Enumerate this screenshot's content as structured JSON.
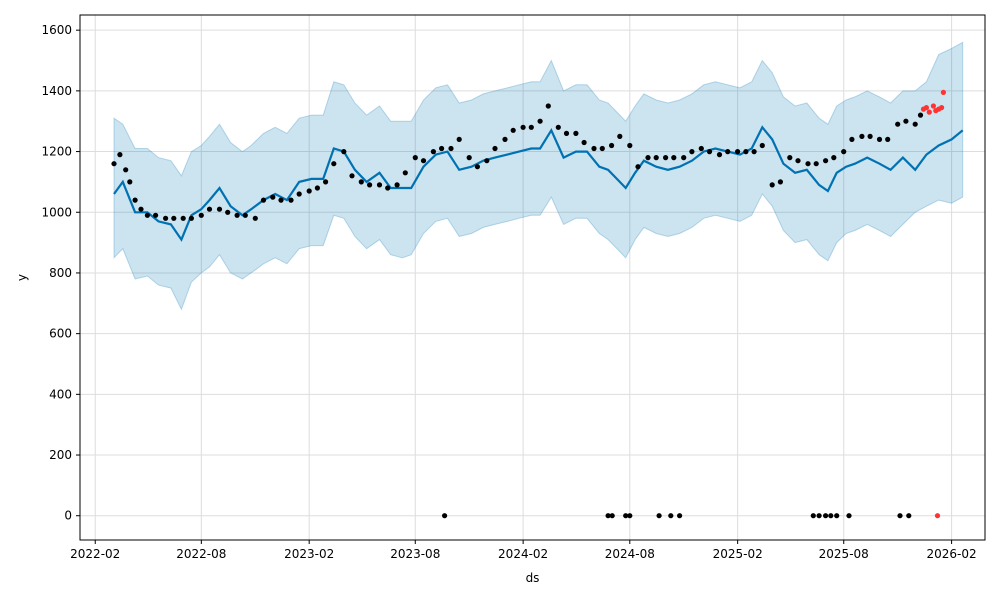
{
  "chart_data": {
    "type": "line",
    "title": "",
    "xlabel": "ds",
    "ylabel": "y",
    "x_range": [
      "2022-01-06",
      "2026-03-30"
    ],
    "ylim": [
      -80,
      1650
    ],
    "grid": true,
    "x_ticks": [
      "2022-02",
      "2022-08",
      "2023-02",
      "2023-08",
      "2024-02",
      "2024-08",
      "2025-02",
      "2025-08",
      "2026-02"
    ],
    "y_ticks": [
      0,
      200,
      400,
      600,
      800,
      1000,
      1200,
      1400,
      1600
    ],
    "colors": {
      "forecast": "#0072B2",
      "uncertainty": "#0072B2",
      "observed": "#000000",
      "outlier": "#FF3333",
      "grid": "#dddddd"
    },
    "series": [
      {
        "kind": "forecast",
        "x": [
          "2022-03-05",
          "2022-03-20",
          "2022-04-10",
          "2022-05-01",
          "2022-05-20",
          "2022-06-10",
          "2022-06-28",
          "2022-07-15",
          "2022-08-01",
          "2022-08-15",
          "2022-09-01",
          "2022-09-20",
          "2022-10-10",
          "2022-10-25",
          "2022-11-15",
          "2022-12-05",
          "2022-12-25",
          "2023-01-15",
          "2023-02-05",
          "2023-02-25",
          "2023-03-15",
          "2023-04-01",
          "2023-04-20",
          "2023-05-10",
          "2023-06-01",
          "2023-06-20",
          "2023-07-10",
          "2023-07-25",
          "2023-08-15",
          "2023-09-05",
          "2023-09-25",
          "2023-10-15",
          "2023-11-05",
          "2023-11-25",
          "2023-12-15",
          "2024-01-05",
          "2024-01-25",
          "2024-02-15",
          "2024-03-01",
          "2024-03-20",
          "2024-04-10",
          "2024-05-01",
          "2024-05-20",
          "2024-06-10",
          "2024-06-25",
          "2024-07-10",
          "2024-07-25",
          "2024-08-10",
          "2024-08-25",
          "2024-09-15",
          "2024-10-05",
          "2024-10-25",
          "2024-11-15",
          "2024-12-05",
          "2024-12-25",
          "2025-01-15",
          "2025-02-05",
          "2025-02-25",
          "2025-03-15",
          "2025-04-01",
          "2025-04-20",
          "2025-05-10",
          "2025-05-30",
          "2025-06-20",
          "2025-07-05",
          "2025-07-20",
          "2025-08-05",
          "2025-08-20",
          "2025-09-10",
          "2025-10-01",
          "2025-10-20",
          "2025-11-10",
          "2025-12-01",
          "2025-12-20",
          "2026-01-10",
          "2026-02-01",
          "2026-02-20"
        ],
        "y": [
          1060,
          1100,
          1000,
          1000,
          970,
          960,
          910,
          990,
          1010,
          1040,
          1080,
          1020,
          990,
          1010,
          1040,
          1060,
          1040,
          1100,
          1110,
          1110,
          1210,
          1200,
          1140,
          1100,
          1130,
          1080,
          1080,
          1080,
          1150,
          1190,
          1200,
          1140,
          1150,
          1170,
          1180,
          1190,
          1200,
          1210,
          1210,
          1270,
          1180,
          1200,
          1200,
          1150,
          1140,
          1110,
          1080,
          1130,
          1170,
          1150,
          1140,
          1150,
          1170,
          1200,
          1210,
          1200,
          1190,
          1210,
          1280,
          1240,
          1160,
          1130,
          1140,
          1090,
          1070,
          1130,
          1150,
          1160,
          1180,
          1160,
          1140,
          1180,
          1140,
          1190,
          1220,
          1240,
          1270
        ]
      },
      {
        "kind": "uncertainty",
        "x": [
          "2022-03-05",
          "2022-03-20",
          "2022-04-10",
          "2022-05-01",
          "2022-05-20",
          "2022-06-10",
          "2022-06-28",
          "2022-07-15",
          "2022-08-01",
          "2022-08-15",
          "2022-09-01",
          "2022-09-20",
          "2022-10-10",
          "2022-10-25",
          "2022-11-15",
          "2022-12-05",
          "2022-12-25",
          "2023-01-15",
          "2023-02-05",
          "2023-02-25",
          "2023-03-15",
          "2023-04-01",
          "2023-04-20",
          "2023-05-10",
          "2023-06-01",
          "2023-06-20",
          "2023-07-10",
          "2023-07-25",
          "2023-08-15",
          "2023-09-05",
          "2023-09-25",
          "2023-10-15",
          "2023-11-05",
          "2023-11-25",
          "2023-12-15",
          "2024-01-05",
          "2024-01-25",
          "2024-02-15",
          "2024-03-01",
          "2024-03-20",
          "2024-04-10",
          "2024-05-01",
          "2024-05-20",
          "2024-06-10",
          "2024-06-25",
          "2024-07-10",
          "2024-07-25",
          "2024-08-10",
          "2024-08-25",
          "2024-09-15",
          "2024-10-05",
          "2024-10-25",
          "2024-11-15",
          "2024-12-05",
          "2024-12-25",
          "2025-01-15",
          "2025-02-05",
          "2025-02-25",
          "2025-03-15",
          "2025-04-01",
          "2025-04-20",
          "2025-05-10",
          "2025-05-30",
          "2025-06-20",
          "2025-07-05",
          "2025-07-20",
          "2025-08-05",
          "2025-08-20",
          "2025-09-10",
          "2025-10-01",
          "2025-10-20",
          "2025-11-10",
          "2025-12-01",
          "2025-12-20",
          "2026-01-10",
          "2026-02-01",
          "2026-02-20"
        ],
        "lower": [
          850,
          880,
          780,
          790,
          760,
          750,
          680,
          770,
          800,
          820,
          860,
          800,
          780,
          800,
          830,
          850,
          830,
          880,
          890,
          890,
          990,
          980,
          920,
          880,
          910,
          860,
          850,
          860,
          930,
          970,
          980,
          920,
          930,
          950,
          960,
          970,
          980,
          990,
          990,
          1050,
          960,
          980,
          980,
          930,
          910,
          880,
          850,
          910,
          950,
          930,
          920,
          930,
          950,
          980,
          990,
          980,
          970,
          990,
          1060,
          1020,
          940,
          900,
          910,
          860,
          840,
          900,
          930,
          940,
          960,
          940,
          920,
          960,
          1000,
          1020,
          1040,
          1030,
          1050
        ],
        "upper": [
          1310,
          1290,
          1210,
          1210,
          1180,
          1170,
          1120,
          1200,
          1220,
          1250,
          1290,
          1230,
          1200,
          1220,
          1260,
          1280,
          1260,
          1310,
          1320,
          1320,
          1430,
          1420,
          1360,
          1320,
          1350,
          1300,
          1300,
          1300,
          1370,
          1410,
          1420,
          1360,
          1370,
          1390,
          1400,
          1410,
          1420,
          1430,
          1430,
          1500,
          1400,
          1420,
          1420,
          1370,
          1360,
          1330,
          1300,
          1350,
          1390,
          1370,
          1360,
          1370,
          1390,
          1420,
          1430,
          1420,
          1410,
          1430,
          1500,
          1460,
          1380,
          1350,
          1360,
          1310,
          1290,
          1350,
          1370,
          1380,
          1400,
          1380,
          1360,
          1400,
          1400,
          1430,
          1520,
          1540,
          1560
        ]
      },
      {
        "kind": "observed",
        "x": [
          "2022-03-05",
          "2022-03-15",
          "2022-03-25",
          "2022-04-01",
          "2022-04-10",
          "2022-04-20",
          "2022-05-01",
          "2022-05-15",
          "2022-06-01",
          "2022-06-15",
          "2022-07-01",
          "2022-07-15",
          "2022-08-01",
          "2022-08-15",
          "2022-09-01",
          "2022-09-15",
          "2022-10-01",
          "2022-10-15",
          "2022-11-01",
          "2022-11-15",
          "2022-12-01",
          "2022-12-15",
          "2023-01-01",
          "2023-01-15",
          "2023-02-01",
          "2023-02-15",
          "2023-03-01",
          "2023-03-15",
          "2023-04-01",
          "2023-04-15",
          "2023-05-01",
          "2023-05-15",
          "2023-06-01",
          "2023-06-15",
          "2023-07-01",
          "2023-07-15",
          "2023-08-01",
          "2023-08-15",
          "2023-09-01",
          "2023-09-15",
          "2023-10-01",
          "2023-10-15",
          "2023-11-01",
          "2023-11-15",
          "2023-12-01",
          "2023-12-15",
          "2024-01-01",
          "2024-01-15",
          "2024-02-01",
          "2024-02-15",
          "2024-03-01",
          "2024-03-15",
          "2024-04-01",
          "2024-04-15",
          "2024-05-01",
          "2024-05-15",
          "2024-06-01",
          "2024-06-15",
          "2024-07-01",
          "2024-07-15",
          "2024-08-01",
          "2024-08-15",
          "2024-09-01",
          "2024-09-15",
          "2024-10-01",
          "2024-10-15",
          "2024-11-01",
          "2024-11-15",
          "2024-12-01",
          "2024-12-15",
          "2025-01-01",
          "2025-01-15",
          "2025-02-01",
          "2025-02-15",
          "2025-03-01",
          "2025-03-15",
          "2025-04-01",
          "2025-04-15",
          "2025-05-01",
          "2025-05-15",
          "2025-06-01",
          "2025-06-15",
          "2025-07-01",
          "2025-07-15",
          "2025-08-01",
          "2025-08-15",
          "2025-09-01",
          "2025-09-15",
          "2025-10-01",
          "2025-10-15",
          "2025-11-01",
          "2025-11-15",
          "2025-12-01",
          "2025-12-10",
          "2023-09-20",
          "2024-06-25",
          "2024-07-02",
          "2024-07-25",
          "2024-08-01",
          "2024-09-20",
          "2024-10-10",
          "2024-10-25",
          "2025-06-10",
          "2025-06-20",
          "2025-07-01",
          "2025-07-10",
          "2025-07-20",
          "2025-08-10",
          "2025-11-05",
          "2025-11-20"
        ],
        "y": [
          1160,
          1190,
          1140,
          1100,
          1040,
          1010,
          990,
          990,
          980,
          980,
          980,
          980,
          990,
          1010,
          1010,
          1000,
          990,
          990,
          980,
          1040,
          1050,
          1040,
          1040,
          1060,
          1070,
          1080,
          1100,
          1160,
          1200,
          1120,
          1100,
          1090,
          1090,
          1080,
          1090,
          1130,
          1180,
          1170,
          1200,
          1210,
          1210,
          1240,
          1180,
          1150,
          1170,
          1210,
          1240,
          1270,
          1280,
          1280,
          1300,
          1350,
          1280,
          1260,
          1260,
          1230,
          1210,
          1210,
          1220,
          1250,
          1220,
          1150,
          1180,
          1180,
          1180,
          1180,
          1180,
          1200,
          1210,
          1200,
          1190,
          1200,
          1200,
          1200,
          1200,
          1220,
          1090,
          1100,
          1180,
          1170,
          1160,
          1160,
          1170,
          1180,
          1200,
          1240,
          1250,
          1250,
          1240,
          1240,
          1290,
          1300,
          1290,
          1320,
          0,
          0,
          0,
          0,
          0,
          0,
          0,
          0,
          0,
          0,
          0,
          0,
          0,
          0,
          0,
          0
        ]
      },
      {
        "kind": "outlier",
        "x": [
          "2025-12-15",
          "2025-12-20",
          "2025-12-25",
          "2026-01-01",
          "2026-01-05",
          "2026-01-10",
          "2026-01-15",
          "2026-01-18",
          "2026-01-08"
        ],
        "y": [
          1340,
          1345,
          1330,
          1350,
          1335,
          1340,
          1345,
          1395,
          0
        ]
      }
    ]
  }
}
